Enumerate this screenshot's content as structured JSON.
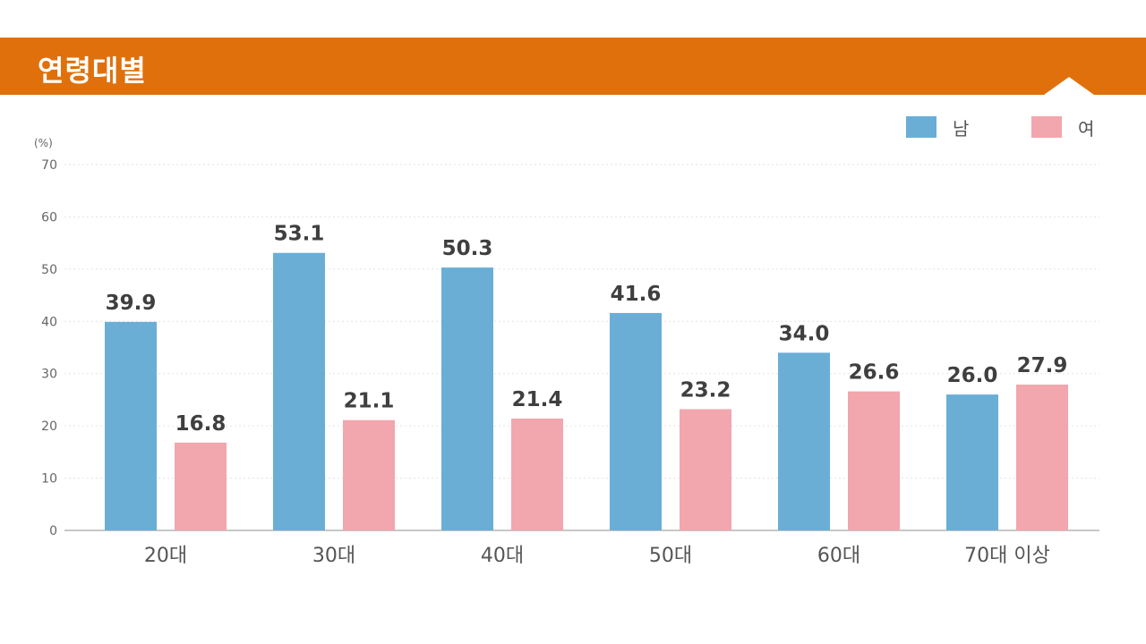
{
  "header": {
    "title": "연령대별"
  },
  "chart_data": {
    "type": "bar",
    "title": "연령대별",
    "unit": "(%)",
    "categories": [
      "20대",
      "30대",
      "40대",
      "50대",
      "60대",
      "70대 이상"
    ],
    "series": [
      {
        "name": "남",
        "color": "#6aaed6",
        "values": [
          39.9,
          53.1,
          50.3,
          41.6,
          34.0,
          26.0
        ],
        "labels": [
          "39.9",
          "53.1",
          "50.3",
          "41.6",
          "34.0",
          "26.0"
        ]
      },
      {
        "name": "여",
        "color": "#f2a6ad",
        "values": [
          16.8,
          21.1,
          21.4,
          23.2,
          26.6,
          27.9
        ],
        "labels": [
          "16.8",
          "21.1",
          "21.4",
          "23.2",
          "26.6",
          "27.9"
        ]
      }
    ],
    "yticks": [
      "0",
      "10",
      "20",
      "30",
      "40",
      "50",
      "60",
      "70"
    ],
    "ylim": [
      0,
      70
    ],
    "grid": true,
    "legend": "top-right"
  }
}
